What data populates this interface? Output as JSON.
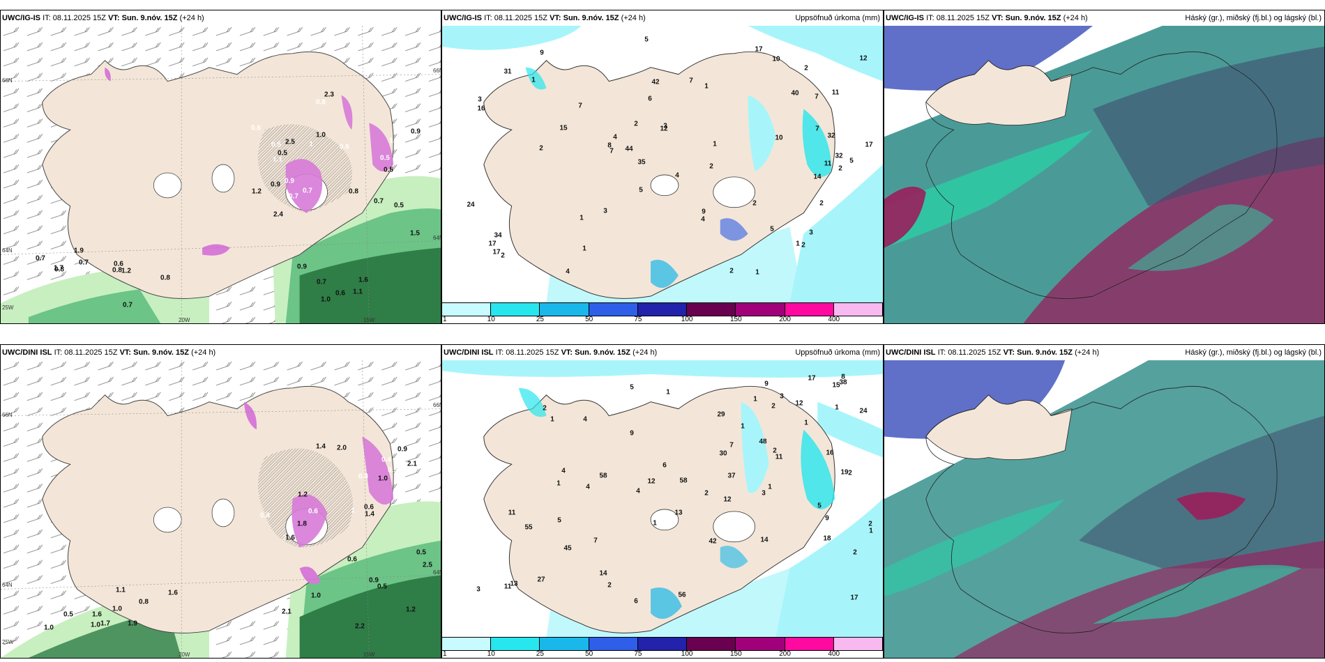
{
  "panels": [
    {
      "id": "top-wind",
      "model": "UWC/IG-IS",
      "it_label": "IT:",
      "it_value": "08.11.2025 15Z",
      "vt_label": "VT:",
      "vt_value": "Sun. 9.nóv. 15Z",
      "lead": "(+24 h)",
      "right_title": "",
      "axis": {
        "lat_top": "66N",
        "lat_mid": "64N",
        "lat_bot": "25W",
        "lon_a": "20W",
        "lon_b": "15W",
        "right_top": "66N",
        "right_mid": "64N"
      },
      "labels": [
        "0.8",
        "1.0",
        "1.0",
        "1.2",
        "0.6",
        "0.9",
        "0.8",
        "0.7",
        "0.5",
        "0.7",
        "0.8",
        "0.9",
        "0.7",
        "1.1",
        "2.3",
        "1.9",
        "2.4",
        "2.5",
        "1.7",
        "1.6",
        "0.7",
        "0.8",
        "1.5",
        "1.2",
        "0.7",
        "0.9",
        "0.5",
        "0.6",
        "0.5"
      ],
      "white_labels": [
        "0.5",
        "0.7",
        "1",
        "0.6",
        "0.7",
        "1.3",
        "0.5",
        "0.9",
        "1.1",
        "0.6",
        "0.8"
      ]
    },
    {
      "id": "top-precip",
      "model": "UWC/IG-IS",
      "it_label": "IT:",
      "it_value": "08.11.2025 15Z",
      "vt_label": "VT:",
      "vt_value": "Sun. 9.nóv. 15Z",
      "lead": "(+24 h)",
      "right_title": "Uppsöfnuð úrkoma (mm)",
      "labels": [
        "1",
        "10",
        "7",
        "7",
        "1",
        "15",
        "9",
        "5",
        "5",
        "5",
        "17",
        "5",
        "42",
        "31",
        "35",
        "40",
        "34",
        "24",
        "4",
        "6",
        "7",
        "3",
        "11",
        "2",
        "4",
        "11",
        "1",
        "12",
        "2",
        "2",
        "3",
        "9",
        "14",
        "12",
        "44",
        "1",
        "7",
        "4",
        "1",
        "2",
        "2",
        "2",
        "1",
        "2",
        "7",
        "2",
        "8",
        "3",
        "32",
        "32",
        "3",
        "2",
        "2",
        "1",
        "4",
        "10",
        "16",
        "17",
        "17",
        "17"
      ]
    },
    {
      "id": "top-cloud",
      "model": "UWC/IG-IS",
      "it_label": "IT:",
      "it_value": "08.11.2025 15Z",
      "vt_label": "VT:",
      "vt_value": "Sun. 9.nóv. 15Z",
      "lead": "(+24 h)",
      "right_title": "Háský (gr.), miðský (fj.bl.) og lágský (bl.)"
    },
    {
      "id": "bottom-wind",
      "model": "UWC/DINI ISL",
      "it_label": "IT:",
      "it_value": "08.11.2025 15Z",
      "vt_label": "VT:",
      "vt_value": "Sun. 9.nóv. 15Z",
      "lead": "(+24 h)",
      "right_title": "",
      "axis": {
        "lat_top": "66N",
        "lat_mid": "64N",
        "lat_bot": "25W",
        "lon_a": "20W",
        "lon_b": "15W",
        "right_top": "66N",
        "right_mid": "64N"
      },
      "labels": [
        "0.8",
        "0.5",
        "0.6",
        "1.0",
        "2.5",
        "1.6",
        "1.0",
        "1.2",
        "0.9",
        "1.7",
        "1.8",
        "1.4",
        "1.6",
        "2.1",
        "2.0",
        "1.6",
        "1.0",
        "1.0",
        "1.1",
        "0.6",
        "1.2",
        "1.9",
        "2.2",
        "2.1",
        "1.0",
        "0.9",
        "1.4",
        "0.5",
        "0.5"
      ],
      "white_labels": [
        "0.8",
        "0.4",
        "1",
        "0.6",
        "0.5",
        "2",
        "0.8"
      ]
    },
    {
      "id": "bottom-precip",
      "model": "UWC/DINI ISL",
      "it_label": "IT:",
      "it_value": "08.11.2025 15Z",
      "vt_label": "VT:",
      "vt_value": "Sun. 9.nóv. 15Z",
      "lead": "(+24 h)",
      "right_title": "Uppsöfnuð úrkoma (mm)",
      "labels": [
        "3",
        "3",
        "2",
        "1",
        "1",
        "1",
        "1",
        "1",
        "1",
        "12",
        "29",
        "13",
        "4",
        "1",
        "9",
        "17",
        "9",
        "2",
        "7",
        "27",
        "6",
        "58",
        "45",
        "56",
        "48",
        "55",
        "58",
        "30",
        "38",
        "37",
        "17",
        "4",
        "7",
        "9",
        "11",
        "2",
        "5",
        "13",
        "1",
        "12",
        "2",
        "2",
        "12",
        "42",
        "4",
        "1",
        "2",
        "1",
        "2",
        "6",
        "5",
        "3",
        "19",
        "24",
        "5",
        "8",
        "11",
        "11",
        "15",
        "14",
        "14",
        "16",
        "18",
        "2",
        "4"
      ]
    },
    {
      "id": "bottom-cloud",
      "model": "UWC/DINI ISL",
      "it_label": "IT:",
      "it_value": "08.11.2025 15Z",
      "vt_label": "VT:",
      "vt_value": "Sun. 9.nóv. 15Z",
      "lead": "(+24 h)",
      "right_title": "Háský (gr.), miðský (fj.bl.) og lágský (bl.)"
    }
  ],
  "precip_legend": {
    "ticks": [
      "1",
      "10",
      "25",
      "50",
      "75",
      "100",
      "150",
      "200",
      "400"
    ],
    "colors": [
      "#c8fbff",
      "#28e6ee",
      "#1ab7ea",
      "#2f5ee8",
      "#2222aa",
      "#6a0050",
      "#a0007a",
      "#ff0aa0",
      "#f7b9ef"
    ]
  },
  "colors": {
    "land": "#f3e6d8",
    "sea_green_light": "#c8efc0",
    "sea_green_mid": "#6cc487",
    "sea_green_dark": "#2f7d47",
    "snow_magenta": "#d77ad8",
    "precip_cyan": "#a7f5fb",
    "cloud_blue": "#6070c8",
    "cloud_teal": "#2a8a86",
    "cloud_dark": "#3f4f6e",
    "cloud_red": "#9a1f5c",
    "cloud_green": "#26d6a8"
  }
}
